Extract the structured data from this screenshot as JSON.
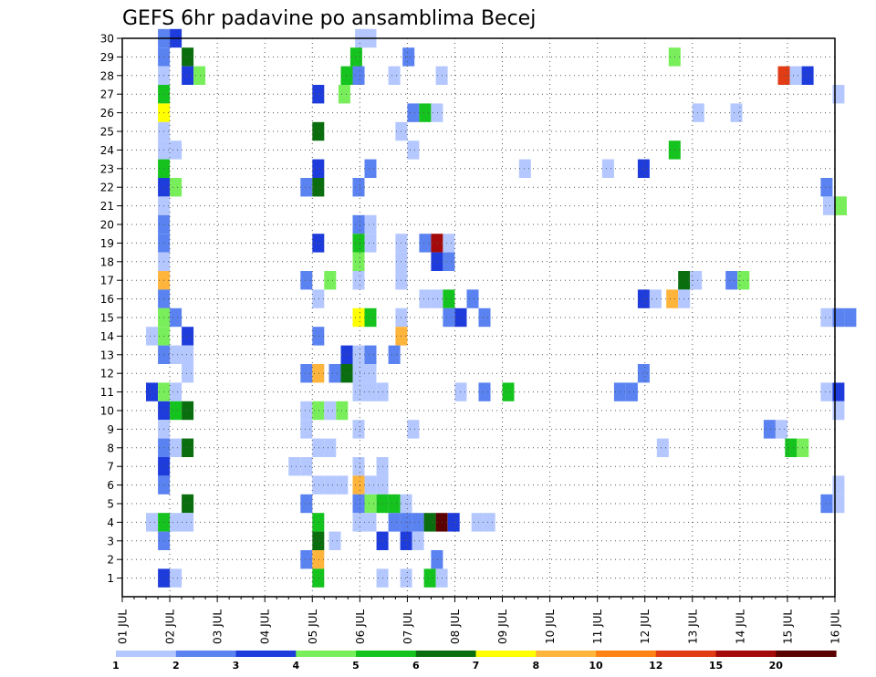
{
  "chart_data": {
    "type": "heatmap",
    "title": "GEFS 6hr padavine po ansamblima Becej",
    "xlabel": "",
    "ylabel": "",
    "x_tick_labels": [
      "01 JUL",
      "02 JUL",
      "03 JUL",
      "04 JUL",
      "05 JUL",
      "06 JUL",
      "07 JUL",
      "08 JUL",
      "09 JUL",
      "10 JUL",
      "11 JUL",
      "12 JUL",
      "13 JUL",
      "14 JUL",
      "15 JUL",
      "16 JUL"
    ],
    "y_tick_labels": [
      "1",
      "2",
      "3",
      "4",
      "5",
      "6",
      "7",
      "8",
      "9",
      "10",
      "11",
      "12",
      "13",
      "14",
      "15",
      "16",
      "17",
      "18",
      "19",
      "20",
      "21",
      "22",
      "23",
      "24",
      "25",
      "26",
      "27",
      "28",
      "29",
      "30"
    ],
    "xlim": [
      0,
      15
    ],
    "ylim": [
      0,
      30
    ],
    "x_unit": "days since 01 JUL 00Z",
    "y_unit": "ensemble member",
    "cell_width_days": 0.25,
    "grid": "dotted",
    "colorbar": {
      "position": "bottom",
      "labels": [
        "1",
        "2",
        "3",
        "4",
        "5",
        "6",
        "7",
        "8",
        "10",
        "12",
        "15",
        "20"
      ],
      "colors": [
        "#b4c8ff",
        "#5a82f0",
        "#1e3cdc",
        "#78ef5a",
        "#14c31e",
        "#0a6e0f",
        "#ffff00",
        "#ffb43c",
        "#ff8214",
        "#e13c14",
        "#a50a0a",
        "#5a0000"
      ]
    },
    "cells_format": "[x_day, member, color_index]",
    "cells": [
      [
        0.75,
        30,
        1
      ],
      [
        1.0,
        30,
        2
      ],
      [
        4.9,
        30,
        0
      ],
      [
        5.1,
        30,
        0
      ],
      [
        0.75,
        29,
        1
      ],
      [
        1.25,
        29,
        5
      ],
      [
        4.8,
        29,
        4
      ],
      [
        5.9,
        29,
        1
      ],
      [
        11.5,
        29,
        3
      ],
      [
        0.75,
        28,
        0
      ],
      [
        1.25,
        28,
        2
      ],
      [
        1.5,
        28,
        3
      ],
      [
        4.6,
        28,
        4
      ],
      [
        4.85,
        28,
        1
      ],
      [
        5.6,
        28,
        0
      ],
      [
        6.6,
        28,
        0
      ],
      [
        13.8,
        28,
        9
      ],
      [
        14.05,
        28,
        0
      ],
      [
        14.3,
        28,
        2
      ],
      [
        0.75,
        27,
        4
      ],
      [
        4.0,
        27,
        2
      ],
      [
        4.55,
        27,
        3
      ],
      [
        14.95,
        27,
        0
      ],
      [
        0.75,
        26,
        6
      ],
      [
        6.0,
        26,
        1
      ],
      [
        6.25,
        26,
        4
      ],
      [
        6.5,
        26,
        0
      ],
      [
        12.0,
        26,
        0
      ],
      [
        12.8,
        26,
        0
      ],
      [
        0.75,
        25,
        0
      ],
      [
        4.0,
        25,
        5
      ],
      [
        5.75,
        25,
        0
      ],
      [
        0.75,
        24,
        0
      ],
      [
        1.0,
        24,
        0
      ],
      [
        6.0,
        24,
        0
      ],
      [
        11.5,
        24,
        4
      ],
      [
        0.75,
        23,
        4
      ],
      [
        4.0,
        23,
        2
      ],
      [
        5.1,
        23,
        1
      ],
      [
        8.35,
        23,
        0
      ],
      [
        10.1,
        23,
        0
      ],
      [
        10.85,
        23,
        2
      ],
      [
        0.75,
        22,
        2
      ],
      [
        1.0,
        22,
        3
      ],
      [
        3.75,
        22,
        1
      ],
      [
        4.0,
        22,
        5
      ],
      [
        4.85,
        22,
        1
      ],
      [
        14.7,
        22,
        1
      ],
      [
        0.75,
        21,
        0
      ],
      [
        14.95,
        21,
        3
      ],
      [
        14.75,
        21,
        0
      ],
      [
        15.0,
        21,
        7
      ],
      [
        15.0,
        21,
        3
      ],
      [
        0.75,
        20,
        1
      ],
      [
        4.85,
        20,
        1
      ],
      [
        5.1,
        20,
        0
      ],
      [
        0.75,
        19,
        1
      ],
      [
        4.0,
        19,
        2
      ],
      [
        4.85,
        19,
        4
      ],
      [
        5.1,
        19,
        0
      ],
      [
        5.75,
        19,
        0
      ],
      [
        6.25,
        19,
        1
      ],
      [
        6.5,
        19,
        10
      ],
      [
        6.75,
        19,
        0
      ],
      [
        0.75,
        18,
        0
      ],
      [
        4.85,
        18,
        3
      ],
      [
        5.75,
        18,
        0
      ],
      [
        6.5,
        18,
        2
      ],
      [
        6.75,
        18,
        1
      ],
      [
        0.75,
        17,
        7
      ],
      [
        3.75,
        17,
        1
      ],
      [
        4.25,
        17,
        3
      ],
      [
        4.85,
        17,
        0
      ],
      [
        5.75,
        17,
        0
      ],
      [
        11.7,
        17,
        5
      ],
      [
        11.95,
        17,
        0
      ],
      [
        12.7,
        17,
        1
      ],
      [
        12.95,
        17,
        3
      ],
      [
        0.75,
        16,
        1
      ],
      [
        4.0,
        16,
        0
      ],
      [
        6.25,
        16,
        0
      ],
      [
        6.5,
        16,
        0
      ],
      [
        6.75,
        16,
        4
      ],
      [
        7.25,
        16,
        1
      ],
      [
        10.85,
        16,
        2
      ],
      [
        11.1,
        16,
        0
      ],
      [
        11.45,
        16,
        7
      ],
      [
        11.7,
        16,
        0
      ],
      [
        0.75,
        15,
        3
      ],
      [
        1.0,
        15,
        1
      ],
      [
        4.85,
        15,
        6
      ],
      [
        5.1,
        15,
        4
      ],
      [
        5.75,
        15,
        0
      ],
      [
        6.75,
        15,
        1
      ],
      [
        7.0,
        15,
        2
      ],
      [
        7.5,
        15,
        1
      ],
      [
        14.7,
        15,
        0
      ],
      [
        14.95,
        15,
        1
      ],
      [
        15.2,
        15,
        1
      ],
      [
        0.5,
        14,
        0
      ],
      [
        0.75,
        14,
        3
      ],
      [
        1.25,
        14,
        2
      ],
      [
        4.0,
        14,
        1
      ],
      [
        5.75,
        14,
        7
      ],
      [
        0.75,
        13,
        1
      ],
      [
        1.0,
        13,
        0
      ],
      [
        1.25,
        13,
        0
      ],
      [
        4.6,
        13,
        2
      ],
      [
        4.85,
        13,
        0
      ],
      [
        5.1,
        13,
        1
      ],
      [
        5.6,
        13,
        1
      ],
      [
        1.25,
        12,
        0
      ],
      [
        3.75,
        12,
        1
      ],
      [
        4.0,
        12,
        7
      ],
      [
        4.35,
        12,
        1
      ],
      [
        4.6,
        12,
        5
      ],
      [
        4.85,
        12,
        0
      ],
      [
        5.1,
        12,
        0
      ],
      [
        10.85,
        12,
        1
      ],
      [
        0.5,
        11,
        2
      ],
      [
        0.75,
        11,
        3
      ],
      [
        1.0,
        11,
        0
      ],
      [
        4.85,
        11,
        0
      ],
      [
        5.1,
        11,
        0
      ],
      [
        5.35,
        11,
        0
      ],
      [
        7.0,
        11,
        0
      ],
      [
        7.5,
        11,
        1
      ],
      [
        8.0,
        11,
        4
      ],
      [
        10.35,
        11,
        1
      ],
      [
        10.6,
        11,
        1
      ],
      [
        14.7,
        11,
        0
      ],
      [
        14.95,
        11,
        2
      ],
      [
        0.75,
        10,
        2
      ],
      [
        1.0,
        10,
        4
      ],
      [
        1.25,
        10,
        5
      ],
      [
        3.75,
        10,
        0
      ],
      [
        4.0,
        10,
        3
      ],
      [
        4.25,
        10,
        0
      ],
      [
        4.5,
        10,
        3
      ],
      [
        14.95,
        10,
        0
      ],
      [
        0.75,
        9,
        0
      ],
      [
        3.75,
        9,
        0
      ],
      [
        4.85,
        9,
        0
      ],
      [
        6.0,
        9,
        0
      ],
      [
        13.5,
        9,
        1
      ],
      [
        13.75,
        9,
        0
      ],
      [
        0.75,
        8,
        1
      ],
      [
        1.0,
        8,
        0
      ],
      [
        1.25,
        8,
        5
      ],
      [
        4.0,
        8,
        0
      ],
      [
        4.25,
        8,
        0
      ],
      [
        11.25,
        8,
        0
      ],
      [
        13.95,
        8,
        4
      ],
      [
        14.2,
        8,
        3
      ],
      [
        0.75,
        7,
        2
      ],
      [
        3.5,
        7,
        0
      ],
      [
        3.75,
        7,
        0
      ],
      [
        4.85,
        7,
        0
      ],
      [
        5.35,
        7,
        0
      ],
      [
        0.75,
        6,
        1
      ],
      [
        4.0,
        6,
        0
      ],
      [
        4.25,
        6,
        0
      ],
      [
        4.5,
        6,
        0
      ],
      [
        4.85,
        6,
        7
      ],
      [
        5.1,
        6,
        0
      ],
      [
        5.35,
        6,
        0
      ],
      [
        14.95,
        6,
        0
      ],
      [
        1.25,
        5,
        5
      ],
      [
        3.75,
        5,
        1
      ],
      [
        4.85,
        5,
        1
      ],
      [
        5.1,
        5,
        3
      ],
      [
        5.35,
        5,
        4
      ],
      [
        5.6,
        5,
        4
      ],
      [
        5.85,
        5,
        0
      ],
      [
        14.7,
        5,
        1
      ],
      [
        14.95,
        5,
        0
      ],
      [
        0.5,
        4,
        0
      ],
      [
        0.75,
        4,
        4
      ],
      [
        1.0,
        4,
        0
      ],
      [
        1.25,
        4,
        0
      ],
      [
        4.0,
        4,
        4
      ],
      [
        4.85,
        4,
        0
      ],
      [
        5.1,
        4,
        0
      ],
      [
        5.6,
        4,
        1
      ],
      [
        5.85,
        4,
        1
      ],
      [
        6.1,
        4,
        1
      ],
      [
        6.35,
        4,
        5
      ],
      [
        6.6,
        4,
        11
      ],
      [
        6.85,
        4,
        2
      ],
      [
        7.35,
        4,
        0
      ],
      [
        7.6,
        4,
        0
      ],
      [
        0.75,
        3,
        1
      ],
      [
        4.0,
        3,
        5
      ],
      [
        4.35,
        3,
        0
      ],
      [
        5.35,
        3,
        2
      ],
      [
        5.85,
        3,
        2
      ],
      [
        6.1,
        3,
        0
      ],
      [
        3.75,
        2,
        1
      ],
      [
        4.0,
        2,
        7
      ],
      [
        6.5,
        2,
        1
      ],
      [
        0.75,
        1,
        2
      ],
      [
        1.0,
        1,
        0
      ],
      [
        4.0,
        1,
        4
      ],
      [
        5.35,
        1,
        0
      ],
      [
        5.85,
        1,
        0
      ],
      [
        6.35,
        1,
        4
      ],
      [
        6.6,
        1,
        0
      ]
    ]
  }
}
